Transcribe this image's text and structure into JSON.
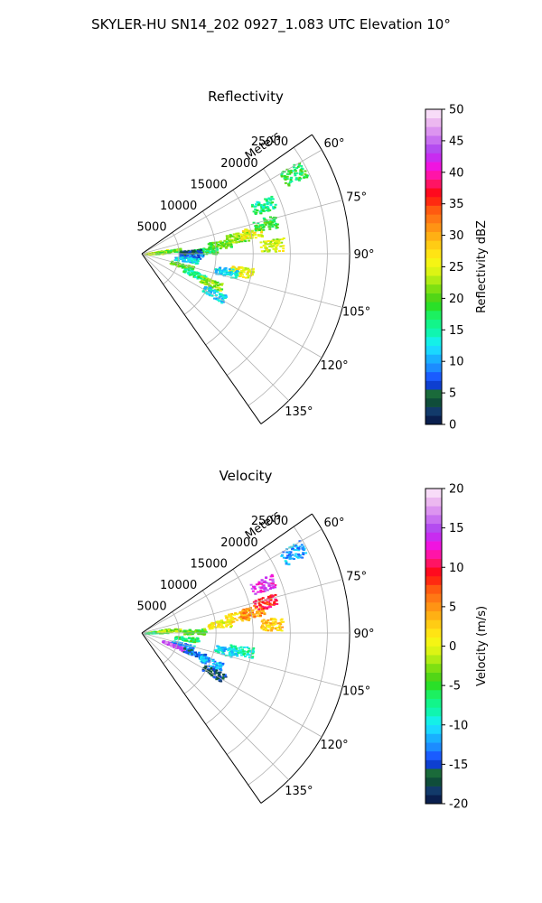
{
  "figure": {
    "title": "SKYLER-HU  SN14_202  0927_1.083 UTC Elevation 10°"
  },
  "chart_data": [
    {
      "type": "polar-sector",
      "title": "Reflectivity",
      "radial_label": "Meters",
      "radial_ticks": [
        5000,
        10000,
        15000,
        20000,
        25000
      ],
      "radial_tick_labels": [
        "5000",
        "10000",
        "15000",
        "20000",
        "25000"
      ],
      "r_max": 28000,
      "azimuth_range": [
        55,
        145
      ],
      "azimuth_ticks": [
        60,
        75,
        90,
        105,
        120,
        135
      ],
      "azimuth_tick_labels": [
        "60°",
        "75°",
        "90°",
        "105°",
        "120°",
        "135°"
      ],
      "grid": true,
      "colorbar": {
        "label": "Reflectivity dBZ",
        "range": [
          0,
          50
        ],
        "ticks": [
          0,
          5,
          10,
          15,
          20,
          25,
          30,
          35,
          40,
          45,
          50
        ],
        "tick_labels": [
          "0",
          "5",
          "10",
          "15",
          "20",
          "25",
          "30",
          "35",
          "40",
          "45",
          "50"
        ],
        "colors": [
          "#0a1f4e",
          "#123a6a",
          "#0f4d3a",
          "#1a6a3a",
          "#0e3fd0",
          "#1a5cff",
          "#1c8cff",
          "#19b0ff",
          "#1ad8ff",
          "#14f0e8",
          "#10f5b0",
          "#12f58a",
          "#1cf060",
          "#2ae028",
          "#52d616",
          "#7ee012",
          "#b0ec14",
          "#dcf414",
          "#f5f514",
          "#ffe414",
          "#ffcc14",
          "#ffb014",
          "#ff9414",
          "#ff7814",
          "#ff5a10",
          "#ff2a10",
          "#ff0a1e",
          "#ff1464",
          "#ff14a8",
          "#f014e0",
          "#c82cf0",
          "#b44cf0",
          "#c870f0",
          "#dc94f0",
          "#ecb8f0",
          "#f8dcf8"
        ]
      },
      "echoes": [
        {
          "az": 82,
          "r": 2000,
          "value": 24
        },
        {
          "az": 84,
          "r": 3500,
          "value": 20
        },
        {
          "az": 86,
          "r": 1500,
          "value": 22
        },
        {
          "az": 87,
          "r": 8500,
          "value": 18
        },
        {
          "az": 88,
          "r": 6500,
          "value": 4
        },
        {
          "az": 92,
          "r": 6500,
          "value": 8
        },
        {
          "az": 83,
          "r": 10500,
          "value": 20
        },
        {
          "az": 80,
          "r": 13000,
          "value": 22
        },
        {
          "az": 79,
          "r": 15000,
          "value": 26
        },
        {
          "az": 86,
          "r": 17500,
          "value": 24
        },
        {
          "az": 76,
          "r": 17000,
          "value": 18
        },
        {
          "az": 68,
          "r": 17500,
          "value": 16
        },
        {
          "az": 62,
          "r": 23000,
          "value": 18
        },
        {
          "az": 97,
          "r": 6000,
          "value": 12
        },
        {
          "az": 106,
          "r": 5500,
          "value": 20
        },
        {
          "az": 111,
          "r": 7500,
          "value": 16
        },
        {
          "az": 113,
          "r": 10000,
          "value": 22
        },
        {
          "az": 100,
          "r": 13500,
          "value": 26
        },
        {
          "az": 102,
          "r": 11500,
          "value": 12
        },
        {
          "az": 119,
          "r": 11000,
          "value": 12
        }
      ]
    },
    {
      "type": "polar-sector",
      "title": "Velocity",
      "radial_label": "Meters",
      "radial_ticks": [
        5000,
        10000,
        15000,
        20000,
        25000
      ],
      "radial_tick_labels": [
        "5000",
        "10000",
        "15000",
        "20000",
        "25000"
      ],
      "r_max": 28000,
      "azimuth_range": [
        55,
        145
      ],
      "azimuth_ticks": [
        60,
        75,
        90,
        105,
        120,
        135
      ],
      "azimuth_tick_labels": [
        "60°",
        "75°",
        "90°",
        "105°",
        "120°",
        "135°"
      ],
      "grid": true,
      "colorbar": {
        "label": "Velocity (m/s)",
        "range": [
          -20,
          20
        ],
        "ticks": [
          -20,
          -15,
          -10,
          -5,
          0,
          5,
          10,
          15,
          20
        ],
        "tick_labels": [
          "-20",
          "-15",
          "-10",
          "-5",
          "0",
          "5",
          "10",
          "15",
          "20"
        ],
        "colors": [
          "#0a1f4e",
          "#123a6a",
          "#0f4d3a",
          "#1a6a3a",
          "#0e3fd0",
          "#1a5cff",
          "#1c8cff",
          "#19b0ff",
          "#1ad8ff",
          "#14f0e8",
          "#10f5b0",
          "#12f58a",
          "#1cf060",
          "#2ae028",
          "#52d616",
          "#7ee012",
          "#b0ec14",
          "#dcf414",
          "#f5f514",
          "#ffe414",
          "#ffcc14",
          "#ffb014",
          "#ff9414",
          "#ff7814",
          "#ff5a10",
          "#ff2a10",
          "#ff0a1e",
          "#ff1464",
          "#ff14a8",
          "#f014e0",
          "#c82cf0",
          "#b44cf0",
          "#c870f0",
          "#dc94f0",
          "#ecb8f0",
          "#f8dcf8"
        ]
      },
      "echoes": [
        {
          "az": 82,
          "r": 2000,
          "value": -4
        },
        {
          "az": 86,
          "r": 1800,
          "value": -6
        },
        {
          "az": 84,
          "r": 3500,
          "value": -2
        },
        {
          "az": 88,
          "r": 7000,
          "value": -4
        },
        {
          "az": 83,
          "r": 10500,
          "value": 1
        },
        {
          "az": 80,
          "r": 13000,
          "value": 2
        },
        {
          "az": 79,
          "r": 15000,
          "value": 5
        },
        {
          "az": 86,
          "r": 17500,
          "value": 3
        },
        {
          "az": 76,
          "r": 17000,
          "value": 9
        },
        {
          "az": 68,
          "r": 17500,
          "value": 14
        },
        {
          "az": 62,
          "r": 23000,
          "value": -12
        },
        {
          "az": 97,
          "r": 6000,
          "value": -6
        },
        {
          "az": 106,
          "r": 5500,
          "value": -12
        },
        {
          "az": 111,
          "r": 4500,
          "value": 15
        },
        {
          "az": 111,
          "r": 7500,
          "value": -14
        },
        {
          "az": 113,
          "r": 10000,
          "value": -12
        },
        {
          "az": 100,
          "r": 13500,
          "value": -8
        },
        {
          "az": 102,
          "r": 11500,
          "value": -10
        },
        {
          "az": 119,
          "r": 11000,
          "value": -16
        }
      ]
    }
  ]
}
